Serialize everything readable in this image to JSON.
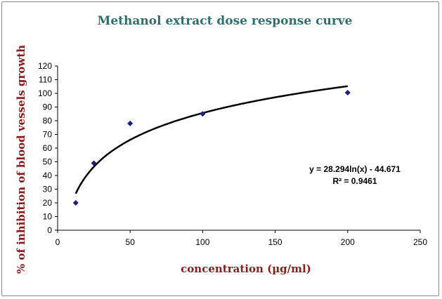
{
  "chart_data": {
    "type": "scatter",
    "title": "Methanol extract dose response curve",
    "xlabel": "concentration (µg/ml)",
    "ylabel": "% of inhibition of blood vessels growth",
    "xlim": [
      0,
      250
    ],
    "ylim": [
      0,
      120
    ],
    "xticks": [
      0,
      50,
      100,
      150,
      200,
      250
    ],
    "yticks": [
      0,
      10,
      20,
      30,
      40,
      50,
      60,
      70,
      80,
      90,
      100,
      110,
      120
    ],
    "series": [
      {
        "name": "Methanol extract",
        "x": [
          12.5,
          25,
          50,
          100,
          200
        ],
        "y": [
          20,
          49,
          78,
          85,
          100.5
        ],
        "marker": "diamond",
        "color": "#1f1f7a"
      }
    ],
    "trendline": {
      "type": "logarithmic",
      "a": 28.294,
      "b": -44.671,
      "x_range": [
        12.5,
        200
      ],
      "color": "#000000",
      "equation": "y = 28.294ln(x) - 44.671",
      "r_squared": "R² = 0.9461"
    },
    "grid": false
  }
}
